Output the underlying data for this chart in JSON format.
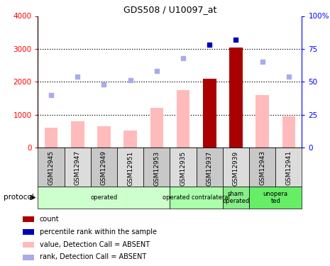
{
  "title": "GDS508 / U10097_at",
  "samples": [
    "GSM12945",
    "GSM12947",
    "GSM12949",
    "GSM12951",
    "GSM12953",
    "GSM12935",
    "GSM12937",
    "GSM12939",
    "GSM12943",
    "GSM12941"
  ],
  "bar_values": [
    600,
    800,
    650,
    530,
    1200,
    1750,
    2100,
    3050,
    1600,
    950
  ],
  "bar_colors": [
    "#ffbbbb",
    "#ffbbbb",
    "#ffbbbb",
    "#ffbbbb",
    "#ffbbbb",
    "#ffbbbb",
    "#aa0000",
    "#aa0000",
    "#ffbbbb",
    "#ffbbbb"
  ],
  "rank_values": [
    40,
    54,
    48,
    51,
    58,
    68,
    78,
    82,
    65,
    54
  ],
  "rank_colors": [
    "#aaaaee",
    "#aaaaee",
    "#aaaaee",
    "#aaaaee",
    "#aaaaee",
    "#aaaaee",
    "#0000bb",
    "#0000bb",
    "#aaaaee",
    "#aaaaee"
  ],
  "ylim_left": [
    0,
    4000
  ],
  "ylim_right": [
    0,
    100
  ],
  "yticks_left": [
    0,
    1000,
    2000,
    3000,
    4000
  ],
  "ytick_labels_left": [
    "0",
    "1000",
    "2000",
    "3000",
    "4000"
  ],
  "yticks_right": [
    0,
    25,
    50,
    75,
    100
  ],
  "ytick_labels_right": [
    "0",
    "25",
    "50",
    "75",
    "100%"
  ],
  "group_defs": [
    {
      "start": 0,
      "end": 5,
      "label": "operated",
      "color": "#ccffcc"
    },
    {
      "start": 5,
      "end": 7,
      "label": "operated contralateral",
      "color": "#aaffaa"
    },
    {
      "start": 7,
      "end": 8,
      "label": "sham\noperated",
      "color": "#88ee88"
    },
    {
      "start": 8,
      "end": 10,
      "label": "unopera\nted",
      "color": "#66ee66"
    }
  ],
  "legend_colors": [
    "#aa0000",
    "#0000bb",
    "#ffbbbb",
    "#aaaaee"
  ],
  "legend_labels": [
    "count",
    "percentile rank within the sample",
    "value, Detection Call = ABSENT",
    "rank, Detection Call = ABSENT"
  ]
}
